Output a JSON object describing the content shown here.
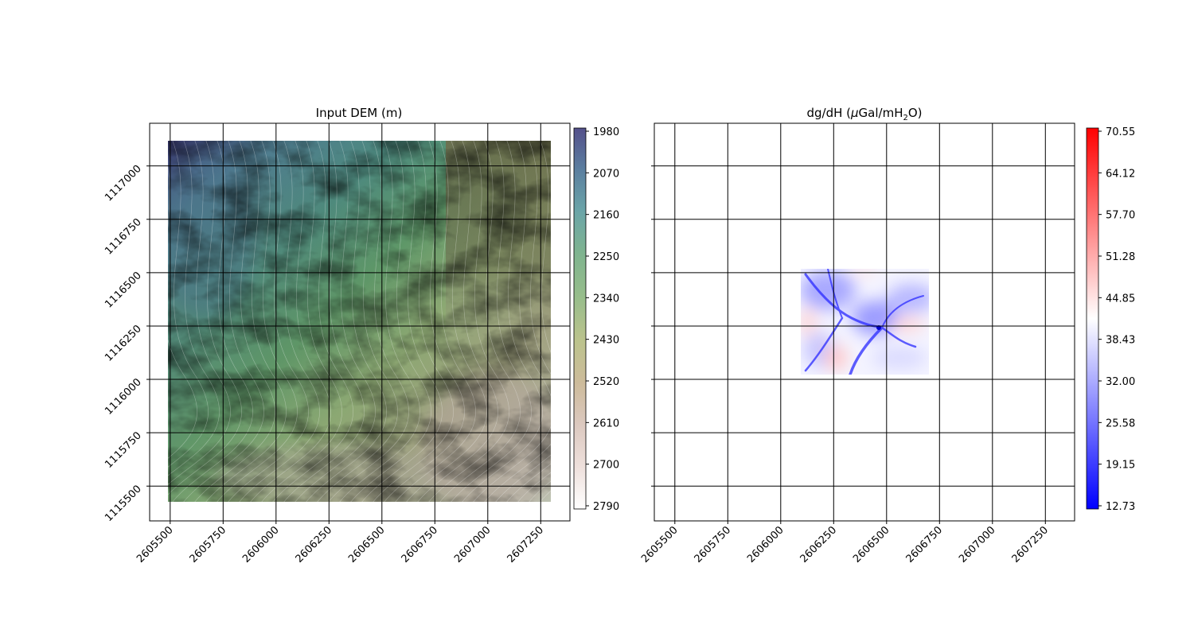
{
  "chart_data": [
    {
      "type": "heatmap",
      "title": "Input DEM (m)",
      "colormap": "gist_earth (semi-transparent) over hillshade, with elevation contours",
      "x_ticks": [
        2605500,
        2605750,
        2606000,
        2606250,
        2606500,
        2606750,
        2607000,
        2607250
      ],
      "y_ticks": [
        1115500,
        1115750,
        1116000,
        1116250,
        1116500,
        1116750,
        1117000
      ],
      "xlim": [
        2605403,
        2607388
      ],
      "ylim": [
        1115337,
        1117200
      ],
      "data_extent": {
        "x": [
          2605490,
          2607280
        ],
        "y": [
          1115410,
          1117120
        ]
      },
      "grid": true,
      "colorbar": {
        "ticks": [
          1980,
          2070,
          2160,
          2250,
          2340,
          2430,
          2520,
          2610,
          2700,
          2790
        ],
        "range": [
          1980,
          2790
        ],
        "reversed": true,
        "colors": [
          "#54508a",
          "#5b7fa0",
          "#6ba5a8",
          "#7fb48f",
          "#a3c08a",
          "#c8c08c",
          "#cbb49a",
          "#dcc9c0",
          "#eee0dc",
          "#ffffff"
        ]
      }
    },
    {
      "type": "heatmap",
      "title": "dg/dH (μGal/mH₂O)",
      "colormap": "bwr",
      "x_ticks": [
        2605500,
        2605750,
        2606000,
        2606250,
        2606500,
        2606750,
        2607000,
        2607250
      ],
      "y_ticks": [
        1115500,
        1115750,
        1116000,
        1116250,
        1116500,
        1116750,
        1117000
      ],
      "xlim": [
        2605403,
        2607388
      ],
      "ylim": [
        1115337,
        1117200
      ],
      "data_extent": {
        "x": [
          2606090,
          2606690
        ],
        "y": [
          1116070,
          1116570
        ]
      },
      "grid": true,
      "colorbar": {
        "ticks": [
          "12.73",
          "19.15",
          "25.58",
          "32.00",
          "38.43",
          "44.85",
          "51.28",
          "57.70",
          "64.12",
          "70.55"
        ],
        "range": [
          12.73,
          70.55
        ],
        "colors": [
          "#0000ff",
          "#ffffff",
          "#ff0000"
        ]
      }
    }
  ]
}
